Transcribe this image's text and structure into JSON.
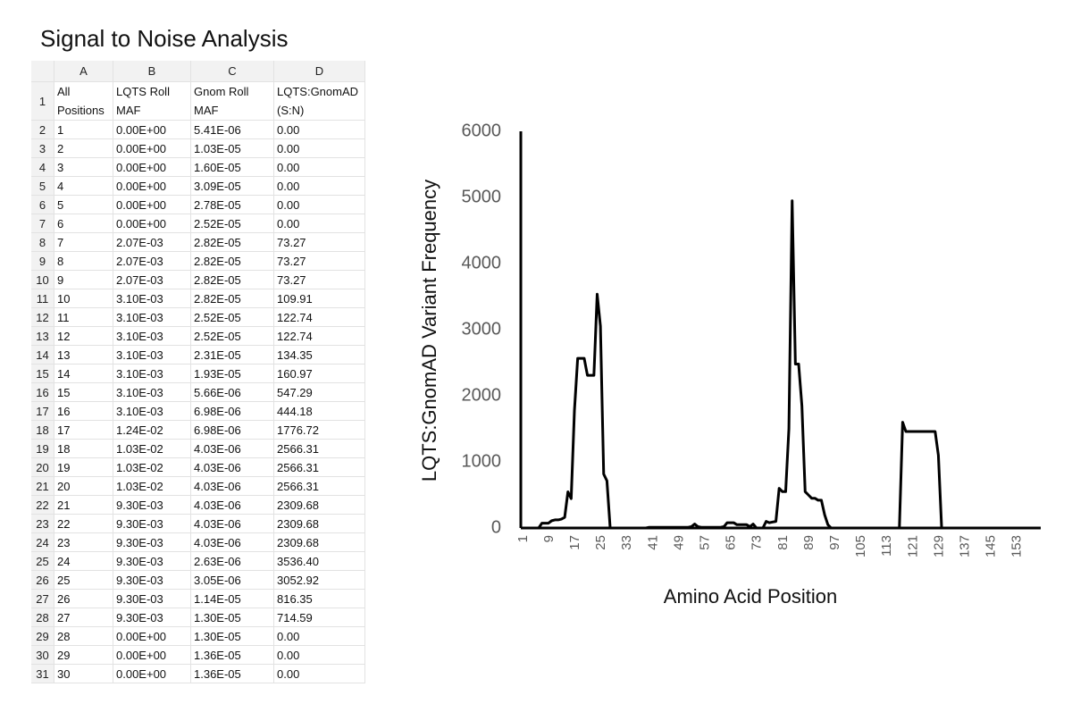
{
  "title": "Signal to Noise Analysis",
  "table": {
    "columns": [
      "A",
      "B",
      "C",
      "D"
    ],
    "row_labels": [
      1,
      2,
      3,
      4,
      5,
      6,
      7,
      8,
      9,
      10,
      11,
      12,
      13,
      14,
      15,
      16,
      17,
      18,
      19,
      20,
      21,
      22,
      23,
      24,
      25,
      26,
      27,
      28,
      29,
      30,
      31
    ],
    "rows": [
      [
        "All Positions",
        "LQTS Roll MAF",
        "Gnom Roll MAF",
        "LQTS:GnomAD (S:N)"
      ],
      [
        "1",
        "0.00E+00",
        "5.41E-06",
        "0.00"
      ],
      [
        "2",
        "0.00E+00",
        "1.03E-05",
        "0.00"
      ],
      [
        "3",
        "0.00E+00",
        "1.60E-05",
        "0.00"
      ],
      [
        "4",
        "0.00E+00",
        "3.09E-05",
        "0.00"
      ],
      [
        "5",
        "0.00E+00",
        "2.78E-05",
        "0.00"
      ],
      [
        "6",
        "0.00E+00",
        "2.52E-05",
        "0.00"
      ],
      [
        "7",
        "2.07E-03",
        "2.82E-05",
        "73.27"
      ],
      [
        "8",
        "2.07E-03",
        "2.82E-05",
        "73.27"
      ],
      [
        "9",
        "2.07E-03",
        "2.82E-05",
        "73.27"
      ],
      [
        "10",
        "3.10E-03",
        "2.82E-05",
        "109.91"
      ],
      [
        "11",
        "3.10E-03",
        "2.52E-05",
        "122.74"
      ],
      [
        "12",
        "3.10E-03",
        "2.52E-05",
        "122.74"
      ],
      [
        "13",
        "3.10E-03",
        "2.31E-05",
        "134.35"
      ],
      [
        "14",
        "3.10E-03",
        "1.93E-05",
        "160.97"
      ],
      [
        "15",
        "3.10E-03",
        "5.66E-06",
        "547.29"
      ],
      [
        "16",
        "3.10E-03",
        "6.98E-06",
        "444.18"
      ],
      [
        "17",
        "1.24E-02",
        "6.98E-06",
        "1776.72"
      ],
      [
        "18",
        "1.03E-02",
        "4.03E-06",
        "2566.31"
      ],
      [
        "19",
        "1.03E-02",
        "4.03E-06",
        "2566.31"
      ],
      [
        "20",
        "1.03E-02",
        "4.03E-06",
        "2566.31"
      ],
      [
        "21",
        "9.30E-03",
        "4.03E-06",
        "2309.68"
      ],
      [
        "22",
        "9.30E-03",
        "4.03E-06",
        "2309.68"
      ],
      [
        "23",
        "9.30E-03",
        "4.03E-06",
        "2309.68"
      ],
      [
        "24",
        "9.30E-03",
        "2.63E-06",
        "3536.40"
      ],
      [
        "25",
        "9.30E-03",
        "3.05E-06",
        "3052.92"
      ],
      [
        "26",
        "9.30E-03",
        "1.14E-05",
        "816.35"
      ],
      [
        "27",
        "9.30E-03",
        "1.30E-05",
        "714.59"
      ],
      [
        "28",
        "0.00E+00",
        "1.30E-05",
        "0.00"
      ],
      [
        "29",
        "0.00E+00",
        "1.36E-05",
        "0.00"
      ],
      [
        "30",
        "0.00E+00",
        "1.36E-05",
        "0.00"
      ]
    ]
  },
  "chart_data": {
    "type": "line",
    "xlabel": "Amino Acid Position",
    "ylabel": "LQTS:GnomAD Variant Frequency",
    "categories": [
      1,
      null,
      null,
      null,
      null,
      null,
      null,
      null,
      9,
      null,
      null,
      null,
      null,
      null,
      null,
      null,
      17,
      null,
      null,
      null,
      null,
      null,
      null,
      null,
      25,
      null,
      null,
      null,
      null,
      null,
      null,
      null,
      33,
      null,
      null,
      null,
      null,
      null,
      null,
      null,
      41,
      null,
      null,
      null,
      null,
      null,
      null,
      null,
      49,
      null,
      null,
      null,
      null,
      null,
      null,
      null,
      57,
      null,
      null,
      null,
      null,
      null,
      null,
      null,
      65,
      null,
      null,
      null,
      null,
      null,
      null,
      null,
      73,
      null,
      null,
      null,
      null,
      null,
      null,
      null,
      81,
      null,
      null,
      null,
      null,
      null,
      null,
      null,
      89,
      null,
      null,
      null,
      null,
      null,
      null,
      null,
      97,
      null,
      null,
      null,
      null,
      null,
      null,
      null,
      105,
      null,
      null,
      null,
      null,
      null,
      null,
      null,
      113,
      null,
      null,
      null,
      null,
      null,
      null,
      null,
      121,
      null,
      null,
      null,
      null,
      null,
      null,
      null,
      129,
      null,
      null,
      null,
      null,
      null,
      null,
      null,
      137,
      null,
      null,
      null,
      null,
      null,
      null,
      null,
      145,
      null,
      null,
      null,
      null,
      null,
      null,
      null,
      153,
      null,
      null,
      null,
      null,
      null,
      null,
      null
    ],
    "series": [
      {
        "name": "LQTS:GnomAD",
        "color": "#000000",
        "values": [
          0,
          0,
          0,
          0,
          0,
          0,
          73.27,
          73.27,
          73.27,
          109.91,
          122.74,
          122.74,
          134.35,
          160.97,
          547.29,
          444.18,
          1776.72,
          2566.31,
          2566.31,
          2566.31,
          2309.68,
          2309.68,
          2309.68,
          3536.4,
          3052.92,
          816.35,
          714.59,
          0,
          0,
          0,
          0,
          0,
          0,
          0,
          0,
          0,
          0,
          0,
          0,
          10,
          10,
          10,
          10,
          10,
          10,
          10,
          10,
          10,
          10,
          10,
          10,
          10,
          20,
          60,
          20,
          10,
          10,
          10,
          10,
          10,
          10,
          10,
          20,
          80,
          80,
          80,
          50,
          50,
          50,
          50,
          20,
          60,
          0,
          0,
          0,
          100,
          80,
          90,
          100,
          600,
          550,
          550,
          1500,
          4950,
          2480,
          2480,
          1850,
          550,
          500,
          450,
          450,
          420,
          420,
          200,
          50,
          0,
          0,
          0,
          0,
          0,
          0,
          0,
          0,
          0,
          0,
          0,
          0,
          0,
          0,
          0,
          0,
          0,
          0,
          0,
          0,
          0,
          0,
          1600,
          1460,
          1460,
          1460,
          1460,
          1460,
          1460,
          1460,
          1460,
          1460,
          1460,
          1100,
          0,
          0,
          0,
          0,
          0,
          0,
          0,
          0,
          0,
          0,
          0,
          0,
          0,
          0,
          0,
          0,
          0,
          0,
          0,
          0,
          0,
          0,
          0,
          0,
          0,
          0,
          0,
          0,
          0,
          0,
          0
        ]
      }
    ],
    "ylim": [
      0,
      6000
    ],
    "yticks": [
      0,
      1000,
      2000,
      3000,
      4000,
      5000,
      6000
    ],
    "grid": false
  }
}
